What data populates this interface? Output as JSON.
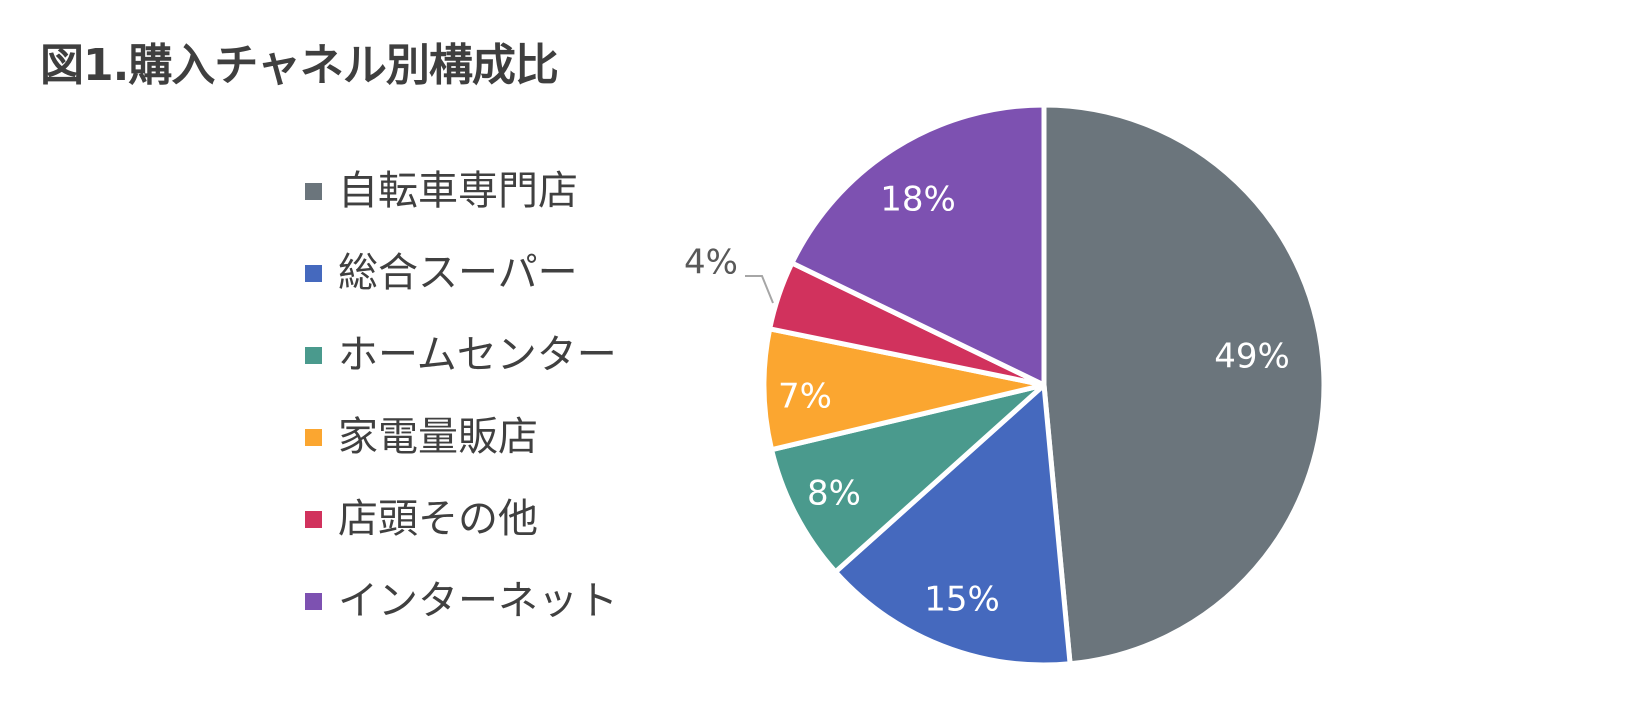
{
  "title": "図1.購入チャネル別構成比",
  "colors": {
    "text": "#404040",
    "leader_line": "#a6a6a6",
    "slice_border": "#ffffff"
  },
  "chart_data": {
    "type": "pie",
    "title": "図1.購入チャネル別構成比",
    "legend_position": "left",
    "start_angle_deg": 0,
    "direction": "clockwise",
    "slices": [
      {
        "name": "自転車専門店",
        "value": 49,
        "label": "49%",
        "color": "#6b757c"
      },
      {
        "name": "総合スーパー",
        "value": 15,
        "label": "15%",
        "color": "#4569be"
      },
      {
        "name": "ホームセンター",
        "value": 8,
        "label": "8%",
        "color": "#4a9a8d"
      },
      {
        "name": "家電量販店",
        "value": 7,
        "label": "7%",
        "color": "#fba630"
      },
      {
        "name": "店頭その他",
        "value": 4,
        "label": "4%",
        "color": "#d1325d"
      },
      {
        "name": "インターネット",
        "value": 18,
        "label": "18%",
        "color": "#7d51b1"
      }
    ]
  }
}
